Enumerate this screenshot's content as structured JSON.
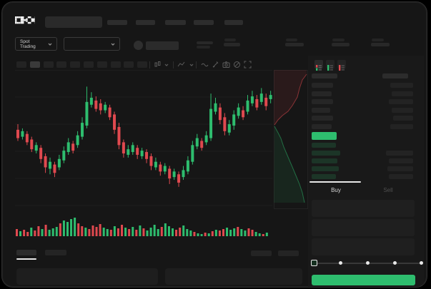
{
  "colors": {
    "green": "#2EBD6E",
    "red": "#E0494F",
    "bid_bar": "#1c3527",
    "accent_text": "#cfcfcf",
    "dim_text": "#4f4f4f"
  },
  "header": {
    "logo": "OKX",
    "nav_placeholder_count": 5
  },
  "trading_controls": {
    "market_selector_label": "Spot Trading"
  },
  "icons": {
    "header": [
      "search-input",
      "pair-coin-circle"
    ],
    "toolbar": [
      "candle-type",
      "chevron-down",
      "indicator",
      "chevron-down",
      "wave-tool",
      "draw-tool",
      "screenshot",
      "disabled-circle",
      "fullscreen"
    ],
    "orderbook_views": [
      "book-both",
      "book-bids",
      "book-asks"
    ],
    "slider": [
      "square-handle",
      "step-dots"
    ]
  },
  "order_panel": {
    "buy_tab": "Buy",
    "sell_tab": "Sell",
    "field_count": 3,
    "slider_steps": 5
  },
  "orderbook": {
    "asks": [
      [
        30,
        32
      ],
      [
        28,
        30
      ],
      [
        30,
        34
      ],
      [
        26,
        30
      ],
      [
        30,
        28
      ],
      [
        28,
        32
      ]
    ],
    "bids": [
      [
        34,
        0
      ],
      [
        40,
        38
      ],
      [
        36,
        34
      ],
      [
        38,
        36
      ],
      [
        34,
        34
      ]
    ],
    "last_price_badge_color": "#2EBD6E"
  },
  "chart_data": {
    "type": "candlestick",
    "title": "",
    "xlabel": "",
    "ylabel": "",
    "note": "Mock trading chart with no visible axis labels; OHLC normalized to 0-100 scale estimated from pixel positions; horizontal gridlines only.",
    "ylim": [
      0,
      100
    ],
    "grid": "horizontal",
    "candles": [
      [
        57,
        61,
        49,
        51
      ],
      [
        52,
        58,
        50,
        56
      ],
      [
        54,
        56,
        46,
        48
      ],
      [
        50,
        52,
        41,
        43
      ],
      [
        42,
        48,
        40,
        46
      ],
      [
        44,
        46,
        33,
        36
      ],
      [
        38,
        40,
        26,
        30
      ],
      [
        29,
        37,
        25,
        34
      ],
      [
        32,
        34,
        23,
        26
      ],
      [
        30,
        39,
        28,
        36
      ],
      [
        35,
        45,
        33,
        42
      ],
      [
        41,
        51,
        39,
        48
      ],
      [
        47,
        49,
        40,
        42
      ],
      [
        46,
        56,
        44,
        53
      ],
      [
        52,
        66,
        50,
        62
      ],
      [
        60,
        88,
        58,
        77
      ],
      [
        75,
        84,
        73,
        80
      ],
      [
        78,
        81,
        70,
        72
      ],
      [
        76,
        79,
        68,
        71
      ],
      [
        71,
        77,
        69,
        75
      ],
      [
        73,
        75,
        64,
        66
      ],
      [
        68,
        70,
        54,
        57
      ],
      [
        59,
        62,
        43,
        46
      ],
      [
        48,
        50,
        37,
        40
      ],
      [
        39,
        46,
        37,
        43
      ],
      [
        41,
        48,
        39,
        46
      ],
      [
        44,
        46,
        36,
        39
      ],
      [
        38,
        44,
        36,
        42
      ],
      [
        41,
        43,
        33,
        36
      ],
      [
        38,
        40,
        28,
        31
      ],
      [
        30,
        37,
        28,
        34
      ],
      [
        32,
        34,
        24,
        27
      ],
      [
        27,
        33,
        25,
        31
      ],
      [
        29,
        31,
        18,
        22
      ],
      [
        23,
        29,
        21,
        27
      ],
      [
        25,
        27,
        16,
        19
      ],
      [
        23,
        31,
        21,
        28
      ],
      [
        27,
        38,
        25,
        35
      ],
      [
        34,
        49,
        32,
        46
      ],
      [
        45,
        54,
        43,
        51
      ],
      [
        49,
        51,
        42,
        44
      ],
      [
        48,
        56,
        46,
        53
      ],
      [
        51,
        83,
        49,
        72
      ],
      [
        70,
        80,
        68,
        76
      ],
      [
        73,
        76,
        61,
        64
      ],
      [
        66,
        69,
        53,
        56
      ],
      [
        55,
        64,
        53,
        61
      ],
      [
        60,
        71,
        57,
        68
      ],
      [
        67,
        76,
        65,
        73
      ],
      [
        71,
        74,
        64,
        66
      ],
      [
        70,
        82,
        68,
        78
      ],
      [
        76,
        85,
        74,
        81
      ],
      [
        79,
        82,
        71,
        73
      ],
      [
        77,
        87,
        75,
        83
      ],
      [
        80,
        83,
        71,
        74
      ],
      [
        79,
        85,
        76,
        82
      ]
    ],
    "volume": [
      10,
      7,
      9,
      6,
      12,
      8,
      14,
      10,
      16,
      9,
      11,
      13,
      18,
      22,
      20,
      24,
      26,
      18,
      14,
      12,
      10,
      15,
      13,
      17,
      12,
      10,
      9,
      14,
      11,
      16,
      12,
      10,
      13,
      9,
      15,
      11,
      8,
      12,
      16,
      10,
      13,
      18,
      14,
      11,
      9,
      12,
      15,
      10,
      8,
      6,
      4,
      3,
      5,
      4,
      7,
      9,
      8,
      10,
      12,
      9,
      11,
      13,
      10,
      8,
      11,
      9,
      6,
      4,
      3,
      5
    ],
    "volume_dir": "dudduddudueuduuuudduddddu",
    "volume_dir_full": "dudduddudu uuduuuuddu dddduududd udududuuuu duuudduuud uudududduu uduudduudu",
    "depth": {
      "asks_line": [
        [
          46,
          6
        ],
        [
          40,
          14
        ],
        [
          36,
          26
        ],
        [
          33,
          38
        ],
        [
          26,
          50
        ],
        [
          20,
          58
        ],
        [
          12,
          64
        ],
        [
          6,
          70
        ],
        [
          1,
          77
        ]
      ],
      "bids_line": [
        [
          1,
          79
        ],
        [
          6,
          88
        ],
        [
          10,
          96
        ],
        [
          14,
          108
        ],
        [
          20,
          122
        ],
        [
          26,
          136
        ],
        [
          31,
          148
        ],
        [
          36,
          160
        ],
        [
          40,
          172
        ],
        [
          43,
          186
        ]
      ]
    }
  }
}
